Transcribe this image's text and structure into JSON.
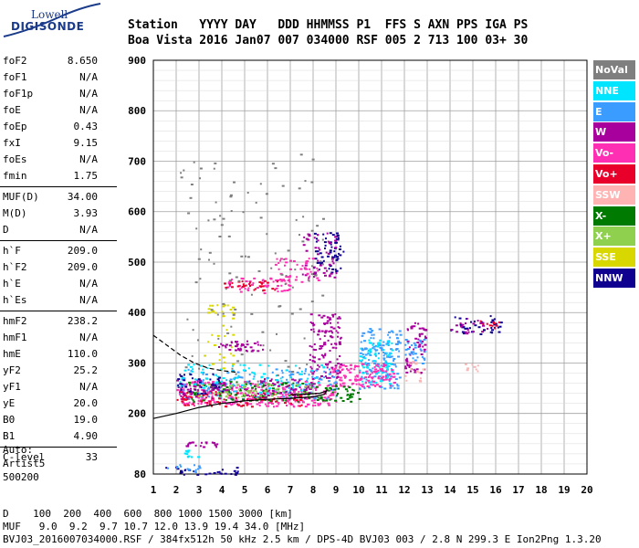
{
  "logo": {
    "line1": "Lowell",
    "line2": "DIGISONDE"
  },
  "header": {
    "labels": "Station   YYYY DAY   DDD HHMMSS P1  FFS S AXN PPS IGA PS",
    "values": "Boa Vista 2016 Jan07 007 034000 RSF 005 2 713 100 03+ 30"
  },
  "params": {
    "group1": [
      {
        "k": "foF2",
        "v": "8.650"
      },
      {
        "k": "foF1",
        "v": "N/A"
      },
      {
        "k": "foF1p",
        "v": "N/A"
      },
      {
        "k": "foE",
        "v": "N/A"
      },
      {
        "k": "foEp",
        "v": "0.43"
      },
      {
        "k": "fxI",
        "v": "9.15"
      },
      {
        "k": "foEs",
        "v": "N/A"
      },
      {
        "k": "fmin",
        "v": "1.75"
      }
    ],
    "group2": [
      {
        "k": "MUF(D)",
        "v": "34.00"
      },
      {
        "k": "M(D)",
        "v": "3.93"
      },
      {
        "k": "D",
        "v": "N/A"
      }
    ],
    "group3": [
      {
        "k": "h`F",
        "v": "209.0"
      },
      {
        "k": "h`F2",
        "v": "209.0"
      },
      {
        "k": "h`E",
        "v": "N/A"
      },
      {
        "k": "h`Es",
        "v": "N/A"
      }
    ],
    "group4": [
      {
        "k": "hmF2",
        "v": "238.2"
      },
      {
        "k": "hmF1",
        "v": "N/A"
      },
      {
        "k": "hmE",
        "v": "110.0"
      },
      {
        "k": "yF2",
        "v": "25.2"
      },
      {
        "k": "yF1",
        "v": "N/A"
      },
      {
        "k": "yE",
        "v": "20.0"
      },
      {
        "k": "B0",
        "v": "19.0"
      },
      {
        "k": "B1",
        "v": "4.90"
      }
    ],
    "group5": [
      {
        "k": "C-level",
        "v": "33"
      }
    ]
  },
  "auto": {
    "line1": "Auto:",
    "line2": "Artist5",
    "line3": "500200"
  },
  "legend": [
    {
      "label": "NoVal",
      "color": "#7f7f7f"
    },
    {
      "label": "NNE",
      "color": "#00e5ff"
    },
    {
      "label": "E",
      "color": "#3a9cff"
    },
    {
      "label": "W",
      "color": "#a8009c"
    },
    {
      "label": "Vo-",
      "color": "#ff2fb4"
    },
    {
      "label": "Vo+",
      "color": "#e8002a"
    },
    {
      "label": "SSW",
      "color": "#ffb3b3"
    },
    {
      "label": "X-",
      "color": "#007a00"
    },
    {
      "label": "X+",
      "color": "#8fd14f"
    },
    {
      "label": "SSE",
      "color": "#d8d800"
    },
    {
      "label": "NNW",
      "color": "#10008f"
    }
  ],
  "footer": {
    "line1": "D    100  200  400  600  800 1000 1500 3000 [km]",
    "line2": "MUF   9.0  9.2  9.7 10.7 12.0 13.9 19.4 34.0 [MHz]",
    "line3": "BVJ03_2016007034000.RSF / 384fx512h 50 kHz 2.5 km / DPS-4D BVJ03 003 / 2.8 N 299.3 E Ion2Png 1.3.20"
  },
  "chart_data": {
    "type": "scatter",
    "xlim": [
      1,
      20
    ],
    "ylim": [
      80,
      900
    ],
    "x_ticks": [
      1,
      2,
      3,
      4,
      5,
      6,
      7,
      8,
      9,
      10,
      11,
      12,
      13,
      14,
      15,
      16,
      17,
      18,
      19,
      20
    ],
    "y_ticks": [
      80,
      200,
      300,
      400,
      500,
      600,
      700,
      800,
      900
    ],
    "grid": true,
    "clusters": [
      {
        "color": "#10008f",
        "x": [
          14.0,
          16.2
        ],
        "y": [
          355,
          395
        ],
        "n": 40
      },
      {
        "color": "#a8009c",
        "x": [
          14.0,
          16.0
        ],
        "y": [
          360,
          390
        ],
        "n": 20
      },
      {
        "color": "#e8002a",
        "x": [
          15.0,
          16.2
        ],
        "y": [
          370,
          390
        ],
        "n": 10
      },
      {
        "color": "#ffb3b3",
        "x": [
          14.4,
          15.2
        ],
        "y": [
          285,
          300
        ],
        "n": 8
      },
      {
        "color": "#a8009c",
        "x": [
          12.0,
          12.9
        ],
        "y": [
          280,
          390
        ],
        "n": 60
      },
      {
        "color": "#3a9cff",
        "x": [
          12.0,
          12.9
        ],
        "y": [
          300,
          350
        ],
        "n": 30
      },
      {
        "color": "#ffb3b3",
        "x": [
          12.0,
          12.8
        ],
        "y": [
          260,
          310
        ],
        "n": 15
      },
      {
        "color": "#3a9cff",
        "x": [
          10.0,
          11.8
        ],
        "y": [
          250,
          370
        ],
        "n": 150
      },
      {
        "color": "#00e5ff",
        "x": [
          10.0,
          11.5
        ],
        "y": [
          260,
          350
        ],
        "n": 80
      },
      {
        "color": "#ff2fb4",
        "x": [
          8.8,
          11.5
        ],
        "y": [
          255,
          300
        ],
        "n": 120
      },
      {
        "color": "#a8009c",
        "x": [
          7.8,
          9.2
        ],
        "y": [
          270,
          400
        ],
        "n": 120
      },
      {
        "color": "#10008f",
        "x": [
          8.0,
          9.3
        ],
        "y": [
          480,
          560
        ],
        "n": 60
      },
      {
        "color": "#a8009c",
        "x": [
          7.5,
          9.0
        ],
        "y": [
          470,
          560
        ],
        "n": 50
      },
      {
        "color": "#ff2fb4",
        "x": [
          6.3,
          8.2
        ],
        "y": [
          460,
          510
        ],
        "n": 40
      },
      {
        "color": "#ff2fb4",
        "x": [
          4.0,
          7.0
        ],
        "y": [
          440,
          470
        ],
        "n": 60
      },
      {
        "color": "#e8002a",
        "x": [
          4.0,
          6.5
        ],
        "y": [
          445,
          465
        ],
        "n": 30
      },
      {
        "color": "#d8d800",
        "x": [
          3.2,
          4.5
        ],
        "y": [
          285,
          420
        ],
        "n": 40
      },
      {
        "color": "#a8009c",
        "x": [
          3.8,
          5.8
        ],
        "y": [
          325,
          345
        ],
        "n": 40
      },
      {
        "color": "#ff2fb4",
        "x": [
          2.0,
          9.0
        ],
        "y": [
          215,
          265
        ],
        "n": 320
      },
      {
        "color": "#3a9cff",
        "x": [
          2.2,
          9.0
        ],
        "y": [
          230,
          290
        ],
        "n": 150
      },
      {
        "color": "#007a00",
        "x": [
          2.5,
          10.0
        ],
        "y": [
          225,
          265
        ],
        "n": 140
      },
      {
        "color": "#00e5ff",
        "x": [
          2.0,
          8.5
        ],
        "y": [
          240,
          300
        ],
        "n": 100
      },
      {
        "color": "#a8009c",
        "x": [
          2.0,
          8.0
        ],
        "y": [
          230,
          270
        ],
        "n": 120
      },
      {
        "color": "#e8002a",
        "x": [
          2.0,
          7.5
        ],
        "y": [
          215,
          245
        ],
        "n": 80
      },
      {
        "color": "#8fd14f",
        "x": [
          2.5,
          8.0
        ],
        "y": [
          230,
          260
        ],
        "n": 60
      },
      {
        "color": "#10008f",
        "x": [
          2.0,
          4.0
        ],
        "y": [
          240,
          280
        ],
        "n": 30
      },
      {
        "color": "#a8009c",
        "x": [
          2.4,
          3.8
        ],
        "y": [
          135,
          145
        ],
        "n": 20
      },
      {
        "color": "#00e5ff",
        "x": [
          2.3,
          3.0
        ],
        "y": [
          115,
          130
        ],
        "n": 10
      },
      {
        "color": "#10008f",
        "x": [
          1.5,
          4.8
        ],
        "y": [
          80,
          95
        ],
        "n": 30
      },
      {
        "color": "#3a9cff",
        "x": [
          1.5,
          3.0
        ],
        "y": [
          85,
          100
        ],
        "n": 15
      },
      {
        "color": "#7f7f7f",
        "x": [
          2.0,
          8.5
        ],
        "y": [
          250,
          720
        ],
        "n": 120
      }
    ],
    "profile_curve": {
      "x": [
        1.0,
        2.0,
        3.0,
        4.0,
        5.0,
        6.0,
        7.0,
        8.0,
        8.5,
        8.6,
        8.3,
        7.0
      ],
      "y": [
        190,
        200,
        212,
        220,
        225,
        228,
        230,
        233,
        238,
        245,
        240,
        237
      ]
    },
    "dashed_curve": {
      "x": [
        1.0,
        1.6,
        2.2,
        2.8,
        3.4,
        4.0,
        4.6
      ],
      "y": [
        355,
        335,
        315,
        300,
        290,
        285,
        282
      ]
    }
  }
}
